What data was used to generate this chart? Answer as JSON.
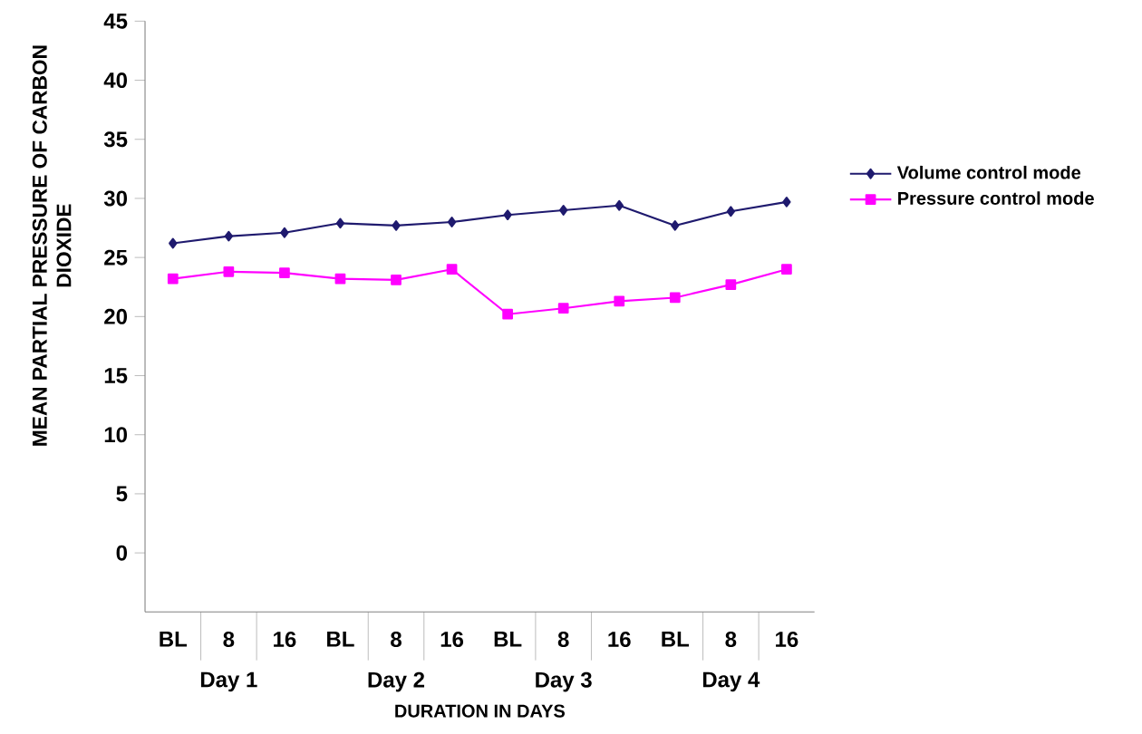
{
  "chart_data": {
    "type": "line",
    "ylabel": "MEAN PARTIAL PRESSURE OF CARBON DIOXIDE",
    "xlabel": "DURATION IN DAYS",
    "categories": [
      "BL",
      "8",
      "16",
      "BL",
      "8",
      "16",
      "BL",
      "8",
      "16",
      "BL",
      "8",
      "16"
    ],
    "series": [
      {
        "name": "Volume control mode",
        "color": "#1f1a6e",
        "marker": "diamond",
        "values": [
          26.2,
          26.8,
          27.1,
          27.9,
          27.7,
          28.0,
          28.6,
          29.0,
          29.4,
          27.7,
          28.9,
          29.7
        ]
      },
      {
        "name": "Pressure control mode",
        "color": "#ff00ff",
        "marker": "square",
        "values": [
          23.2,
          23.8,
          23.7,
          23.2,
          23.1,
          24.0,
          20.2,
          20.7,
          21.3,
          21.6,
          22.7,
          24.0
        ]
      }
    ],
    "ylim": [
      -5,
      45
    ],
    "yticks": [
      0,
      5,
      10,
      15,
      20,
      25,
      30,
      35,
      40,
      45
    ],
    "annotations": [
      "Day 1",
      "Day 2",
      "Day 3",
      "Day 4"
    ],
    "legend": "right",
    "grid": false
  }
}
